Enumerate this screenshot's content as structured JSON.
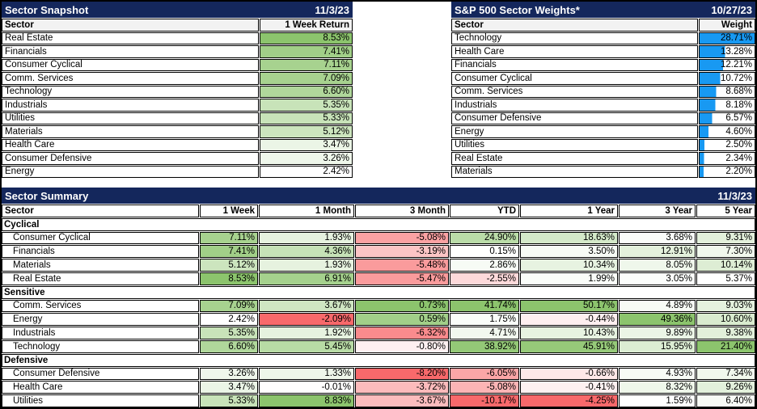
{
  "colors": {
    "navy": "#14275C",
    "heat_green": "#8CC46D",
    "heat_red": "#F8696B",
    "bar_blue": "#1899F2",
    "header_gray": "#F2F2F2"
  },
  "snapshot": {
    "title": "Sector Snapshot",
    "date": "11/3/23",
    "col_sector": "Sector",
    "col_value": "1 Week Return",
    "rows": [
      {
        "sector": "Real Estate",
        "value": "8.53%"
      },
      {
        "sector": "Financials",
        "value": "7.41%"
      },
      {
        "sector": "Consumer Cyclical",
        "value": "7.11%"
      },
      {
        "sector": "Comm. Services",
        "value": "7.09%"
      },
      {
        "sector": "Technology",
        "value": "6.60%"
      },
      {
        "sector": "Industrials",
        "value": "5.35%"
      },
      {
        "sector": "Utilities",
        "value": "5.33%"
      },
      {
        "sector": "Materials",
        "value": "5.12%"
      },
      {
        "sector": "Health Care",
        "value": "3.47%"
      },
      {
        "sector": "Consumer Defensive",
        "value": "3.26%"
      },
      {
        "sector": "Energy",
        "value": "2.42%"
      }
    ]
  },
  "weights": {
    "title": "S&P 500 Sector Weights*",
    "date": "10/27/23",
    "col_sector": "Sector",
    "col_value": "Weight",
    "bar_max": 28.71,
    "rows": [
      {
        "sector": "Technology",
        "value": "28.71%"
      },
      {
        "sector": "Health Care",
        "value": "13.28%"
      },
      {
        "sector": "Financials",
        "value": "12.21%"
      },
      {
        "sector": "Consumer Cyclical",
        "value": "10.72%"
      },
      {
        "sector": "Comm. Services",
        "value": "8.68%"
      },
      {
        "sector": "Industrials",
        "value": "8.18%"
      },
      {
        "sector": "Consumer Defensive",
        "value": "6.57%"
      },
      {
        "sector": "Energy",
        "value": "4.60%"
      },
      {
        "sector": "Utilities",
        "value": "2.50%"
      },
      {
        "sector": "Real Estate",
        "value": "2.34%"
      },
      {
        "sector": "Materials",
        "value": "2.20%"
      }
    ]
  },
  "summary": {
    "title": "Sector Summary",
    "date": "11/3/23",
    "columns": [
      "Sector",
      "1 Week",
      "1 Month",
      "3 Month",
      "YTD",
      "1 Year",
      "3 Year",
      "5 Year"
    ],
    "groups": [
      {
        "name": "Cyclical",
        "rows": [
          {
            "sector": "Consumer Cyclical",
            "values": [
              "7.11%",
              "1.93%",
              "-5.08%",
              "24.90%",
              "18.63%",
              "3.68%",
              "9.31%"
            ]
          },
          {
            "sector": "Financials",
            "values": [
              "7.41%",
              "4.36%",
              "-3.19%",
              "0.15%",
              "3.50%",
              "12.91%",
              "7.30%"
            ]
          },
          {
            "sector": "Materials",
            "values": [
              "5.12%",
              "1.93%",
              "-5.48%",
              "2.86%",
              "10.34%",
              "8.05%",
              "10.14%"
            ]
          },
          {
            "sector": "Real Estate",
            "values": [
              "8.53%",
              "6.91%",
              "-5.47%",
              "-2.55%",
              "1.99%",
              "3.05%",
              "5.37%"
            ]
          }
        ]
      },
      {
        "name": "Sensitive",
        "rows": [
          {
            "sector": "Comm. Services",
            "values": [
              "7.09%",
              "3.67%",
              "0.73%",
              "41.74%",
              "50.17%",
              "4.89%",
              "9.03%"
            ]
          },
          {
            "sector": "Energy",
            "values": [
              "2.42%",
              "-2.09%",
              "0.59%",
              "1.75%",
              "-0.44%",
              "49.36%",
              "10.60%"
            ]
          },
          {
            "sector": "Industrials",
            "values": [
              "5.35%",
              "1.92%",
              "-6.32%",
              "4.71%",
              "10.43%",
              "9.89%",
              "9.38%"
            ]
          },
          {
            "sector": "Technology",
            "values": [
              "6.60%",
              "5.45%",
              "-0.80%",
              "38.92%",
              "45.91%",
              "15.95%",
              "21.40%"
            ]
          }
        ]
      },
      {
        "name": "Defensive",
        "rows": [
          {
            "sector": "Consumer Defensive",
            "values": [
              "3.26%",
              "1.33%",
              "-8.20%",
              "-6.05%",
              "-0.66%",
              "4.93%",
              "7.34%"
            ]
          },
          {
            "sector": "Health Care",
            "values": [
              "3.47%",
              "-0.01%",
              "-3.72%",
              "-5.08%",
              "-0.41%",
              "8.32%",
              "9.26%"
            ]
          },
          {
            "sector": "Utilities",
            "values": [
              "5.33%",
              "8.83%",
              "-3.67%",
              "-10.17%",
              "-4.25%",
              "1.59%",
              "6.40%"
            ]
          }
        ]
      }
    ]
  },
  "chart_data": [
    {
      "type": "table",
      "title": "Sector Snapshot",
      "date": "11/3/23",
      "columns": [
        "Sector",
        "1 Week Return (%)"
      ],
      "rows": [
        [
          "Real Estate",
          8.53
        ],
        [
          "Financials",
          7.41
        ],
        [
          "Consumer Cyclical",
          7.11
        ],
        [
          "Comm. Services",
          7.09
        ],
        [
          "Technology",
          6.6
        ],
        [
          "Industrials",
          5.35
        ],
        [
          "Utilities",
          5.33
        ],
        [
          "Materials",
          5.12
        ],
        [
          "Health Care",
          3.47
        ],
        [
          "Consumer Defensive",
          3.26
        ],
        [
          "Energy",
          2.42
        ]
      ],
      "style": "green heat shading scaled from column min (white) to column max (green)"
    },
    {
      "type": "bar",
      "title": "S&P 500 Sector Weights*",
      "date": "10/27/23",
      "orientation": "horizontal",
      "categories": [
        "Technology",
        "Health Care",
        "Financials",
        "Consumer Cyclical",
        "Comm. Services",
        "Industrials",
        "Consumer Defensive",
        "Energy",
        "Utilities",
        "Real Estate",
        "Materials"
      ],
      "values": [
        28.71,
        13.28,
        12.21,
        10.72,
        8.68,
        8.18,
        6.57,
        4.6,
        2.5,
        2.34,
        2.2
      ],
      "unit": "%",
      "bar_color": "#1899F2",
      "xlim": [
        0,
        28.71
      ]
    },
    {
      "type": "table",
      "title": "Sector Summary",
      "date": "11/3/23",
      "columns": [
        "Sector",
        "1 Week",
        "1 Month",
        "3 Month",
        "YTD",
        "1 Year",
        "3 Year",
        "5 Year"
      ],
      "unit": "%",
      "groups": {
        "Cyclical": {
          "Consumer Cyclical": [
            7.11,
            1.93,
            -5.08,
            24.9,
            18.63,
            3.68,
            9.31
          ],
          "Financials": [
            7.41,
            4.36,
            -3.19,
            0.15,
            3.5,
            12.91,
            7.3
          ],
          "Materials": [
            5.12,
            1.93,
            -5.48,
            2.86,
            10.34,
            8.05,
            10.14
          ],
          "Real Estate": [
            8.53,
            6.91,
            -5.47,
            -2.55,
            1.99,
            3.05,
            5.37
          ]
        },
        "Sensitive": {
          "Comm. Services": [
            7.09,
            3.67,
            0.73,
            41.74,
            50.17,
            4.89,
            9.03
          ],
          "Energy": [
            2.42,
            -2.09,
            0.59,
            1.75,
            -0.44,
            49.36,
            10.6
          ],
          "Industrials": [
            5.35,
            1.92,
            -6.32,
            4.71,
            10.43,
            9.89,
            9.38
          ],
          "Technology": [
            6.6,
            5.45,
            -0.8,
            38.92,
            45.91,
            15.95,
            21.4
          ]
        },
        "Defensive": {
          "Consumer Defensive": [
            3.26,
            1.33,
            -8.2,
            -6.05,
            -0.66,
            4.93,
            7.34
          ],
          "Health Care": [
            3.47,
            -0.01,
            -3.72,
            -5.08,
            -0.41,
            8.32,
            9.26
          ],
          "Utilities": [
            5.33,
            8.83,
            -3.67,
            -10.17,
            -4.25,
            1.59,
            6.4
          ]
        }
      },
      "style": "per-column red-white-green heat shading: column min (if negative) = red, 0 = white, column max = green; all-positive columns scale white at column min"
    }
  ]
}
